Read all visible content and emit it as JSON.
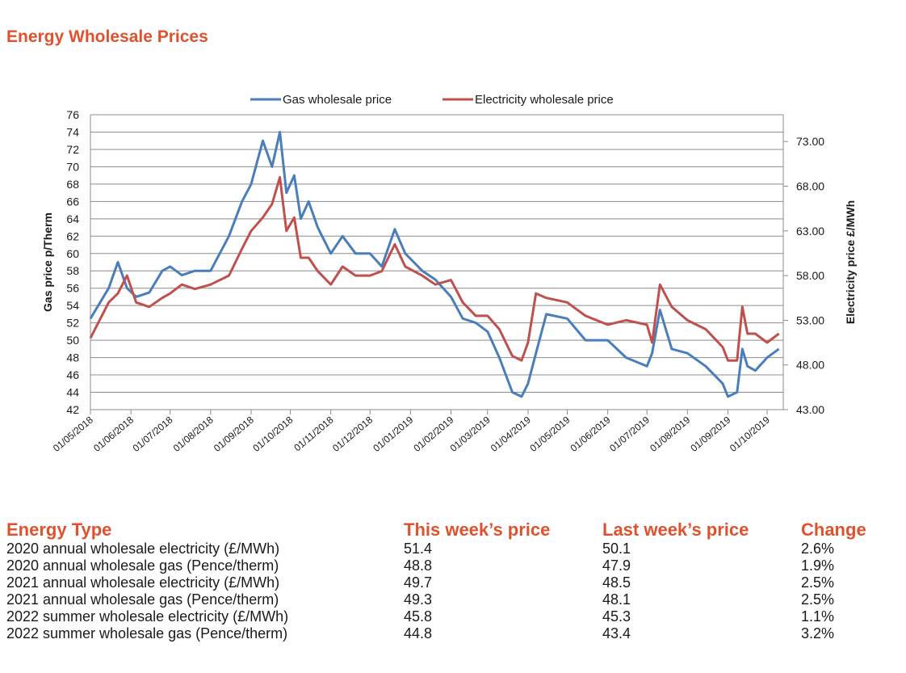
{
  "page": {
    "title": "Energy Wholesale Prices"
  },
  "chart_data": {
    "type": "line",
    "xlabel": "",
    "ylabel_left": "Gas price p/Therm",
    "ylabel_right": "Electricity price £/MWh",
    "ylim_left": [
      42,
      76
    ],
    "ylim_right": [
      43,
      76
    ],
    "y_ticks_left": [
      "42",
      "44",
      "46",
      "48",
      "50",
      "52",
      "54",
      "56",
      "58",
      "60",
      "62",
      "64",
      "66",
      "68",
      "70",
      "72",
      "74",
      "76"
    ],
    "y_ticks_right": [
      "43.00",
      "48.00",
      "53.00",
      "58.00",
      "63.00",
      "68.00",
      "73.00"
    ],
    "x_tick_labels": [
      "01/05/2018",
      "01/06/2018",
      "01/07/2018",
      "01/08/2018",
      "01/09/2018",
      "01/10/2018",
      "01/11/2018",
      "01/12/2018",
      "01/01/2019",
      "01/02/2019",
      "01/03/2019",
      "01/04/2019",
      "01/05/2019",
      "01/06/2019",
      "01/07/2019",
      "01/08/2019",
      "01/09/2019",
      "01/10/2019"
    ],
    "grid": "horizontal",
    "legend_position": "top",
    "series": [
      {
        "name": "Gas wholesale price",
        "axis": "left",
        "color": "#4a7ebb",
        "x": [
          "01/05/2018",
          "15/05/2018",
          "22/05/2018",
          "29/05/2018",
          "05/06/2018",
          "15/06/2018",
          "25/06/2018",
          "01/07/2018",
          "10/07/2018",
          "20/07/2018",
          "01/08/2018",
          "15/08/2018",
          "25/08/2018",
          "01/09/2018",
          "10/09/2018",
          "17/09/2018",
          "23/09/2018",
          "28/09/2018",
          "04/10/2018",
          "09/10/2018",
          "15/10/2018",
          "22/10/2018",
          "01/11/2018",
          "10/11/2018",
          "20/11/2018",
          "01/12/2018",
          "10/12/2018",
          "20/12/2018",
          "28/12/2018",
          "10/01/2019",
          "20/01/2019",
          "01/02/2019",
          "10/02/2019",
          "20/02/2019",
          "01/03/2019",
          "10/03/2019",
          "20/03/2019",
          "27/03/2019",
          "01/04/2019",
          "07/04/2019",
          "15/04/2019",
          "01/05/2019",
          "15/05/2019",
          "01/06/2019",
          "15/06/2019",
          "01/07/2019",
          "05/07/2019",
          "11/07/2019",
          "20/07/2019",
          "01/08/2019",
          "15/08/2019",
          "28/08/2019",
          "01/09/2019",
          "08/09/2019",
          "12/09/2019",
          "16/09/2019",
          "22/09/2019",
          "01/10/2019",
          "10/10/2019"
        ],
        "values": [
          52.5,
          56,
          59,
          56,
          55,
          55.5,
          58,
          58.5,
          57.5,
          58,
          58,
          62,
          66,
          68,
          73,
          70,
          74,
          67,
          69,
          64,
          66,
          63,
          60,
          62,
          60,
          60,
          58.5,
          62.8,
          60,
          58,
          57,
          55,
          52.5,
          52,
          51,
          48,
          44,
          43.5,
          45,
          48.5,
          53,
          52.5,
          50,
          50,
          48,
          47,
          48.5,
          53.5,
          49,
          48.5,
          47,
          45,
          43.5,
          44,
          49,
          47,
          46.5,
          48,
          49
        ]
      },
      {
        "name": "Electricity wholesale price",
        "axis": "right",
        "color": "#c0504d",
        "x": [
          "01/05/2018",
          "15/05/2018",
          "22/05/2018",
          "29/05/2018",
          "05/06/2018",
          "15/06/2018",
          "25/06/2018",
          "01/07/2018",
          "10/07/2018",
          "20/07/2018",
          "01/08/2018",
          "15/08/2018",
          "25/08/2018",
          "01/09/2018",
          "10/09/2018",
          "17/09/2018",
          "23/09/2018",
          "28/09/2018",
          "04/10/2018",
          "09/10/2018",
          "15/10/2018",
          "22/10/2018",
          "01/11/2018",
          "10/11/2018",
          "20/11/2018",
          "01/12/2018",
          "10/12/2018",
          "20/12/2018",
          "28/12/2018",
          "10/01/2019",
          "20/01/2019",
          "01/02/2019",
          "10/02/2019",
          "20/02/2019",
          "01/03/2019",
          "10/03/2019",
          "20/03/2019",
          "27/03/2019",
          "01/04/2019",
          "07/04/2019",
          "15/04/2019",
          "01/05/2019",
          "15/05/2019",
          "01/06/2019",
          "15/06/2019",
          "01/07/2019",
          "05/07/2019",
          "11/07/2019",
          "20/07/2019",
          "01/08/2019",
          "15/08/2019",
          "28/08/2019",
          "01/09/2019",
          "08/09/2019",
          "12/09/2019",
          "16/09/2019",
          "22/09/2019",
          "01/10/2019",
          "10/10/2019"
        ],
        "values": [
          51,
          55,
          56,
          58,
          55,
          54.5,
          55.5,
          56,
          57,
          56.5,
          57,
          58,
          61,
          63,
          64.5,
          66,
          69,
          63,
          64.5,
          60,
          60,
          58.5,
          57,
          59,
          58,
          58,
          58.5,
          61.5,
          59,
          58,
          57,
          57.5,
          55,
          53.5,
          53.5,
          52,
          49,
          48.5,
          50.5,
          56,
          55.5,
          55,
          53.5,
          52.5,
          53,
          52.5,
          50.5,
          57,
          54.5,
          53,
          52,
          50,
          48.5,
          48.5,
          54.5,
          51.5,
          51.5,
          50.5,
          51.5
        ]
      }
    ]
  },
  "table": {
    "headers": [
      "Energy Type",
      "This week’s price",
      "Last week’s price",
      "Change"
    ],
    "rows": [
      [
        "2020 annual wholesale electricity (£/MWh)",
        "51.4",
        "50.1",
        "2.6%"
      ],
      [
        "2020 annual wholesale gas (Pence/therm)",
        "48.8",
        "47.9",
        "1.9%"
      ],
      [
        "2021 annual wholesale electricity (£/MWh)",
        "49.7",
        "48.5",
        "2.5%"
      ],
      [
        "2021 annual wholesale gas (Pence/therm)",
        "49.3",
        "48.1",
        "2.5%"
      ],
      [
        "2022 summer wholesale electricity (£/MWh)",
        "45.8",
        "45.3",
        "1.1%"
      ],
      [
        "2022 summer wholesale gas (Pence/therm)",
        "44.8",
        "43.4",
        "3.2%"
      ]
    ]
  }
}
